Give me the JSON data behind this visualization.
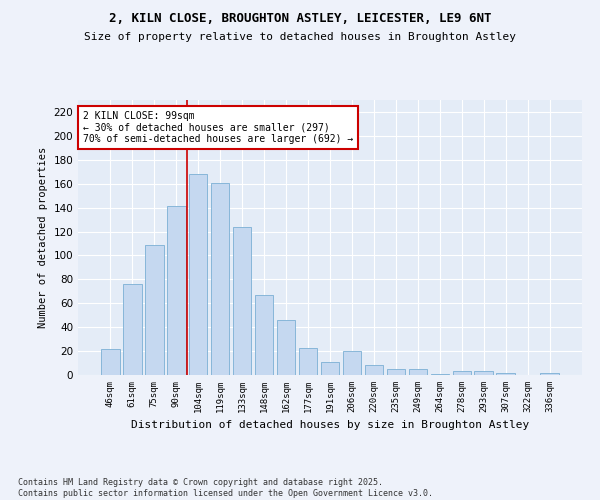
{
  "title1": "2, KILN CLOSE, BROUGHTON ASTLEY, LEICESTER, LE9 6NT",
  "title2": "Size of property relative to detached houses in Broughton Astley",
  "xlabel": "Distribution of detached houses by size in Broughton Astley",
  "ylabel": "Number of detached properties",
  "categories": [
    "46sqm",
    "61sqm",
    "75sqm",
    "90sqm",
    "104sqm",
    "119sqm",
    "133sqm",
    "148sqm",
    "162sqm",
    "177sqm",
    "191sqm",
    "206sqm",
    "220sqm",
    "235sqm",
    "249sqm",
    "264sqm",
    "278sqm",
    "293sqm",
    "307sqm",
    "322sqm",
    "336sqm"
  ],
  "values": [
    22,
    76,
    109,
    141,
    168,
    161,
    124,
    67,
    46,
    23,
    11,
    20,
    8,
    5,
    5,
    1,
    3,
    3,
    2,
    0,
    2
  ],
  "bar_color": "#c5d8f0",
  "bar_edge_color": "#7bafd4",
  "vline_x": 3.5,
  "vline_color": "#cc0000",
  "annotation_text": "2 KILN CLOSE: 99sqm\n← 30% of detached houses are smaller (297)\n70% of semi-detached houses are larger (692) →",
  "annotation_box_color": "#ffffff",
  "annotation_box_edge": "#cc0000",
  "ylim": [
    0,
    230
  ],
  "yticks": [
    0,
    20,
    40,
    60,
    80,
    100,
    120,
    140,
    160,
    180,
    200,
    220
  ],
  "footnote": "Contains HM Land Registry data © Crown copyright and database right 2025.\nContains public sector information licensed under the Open Government Licence v3.0.",
  "bg_color": "#eef2fa",
  "plot_bg_color": "#e4ecf7"
}
